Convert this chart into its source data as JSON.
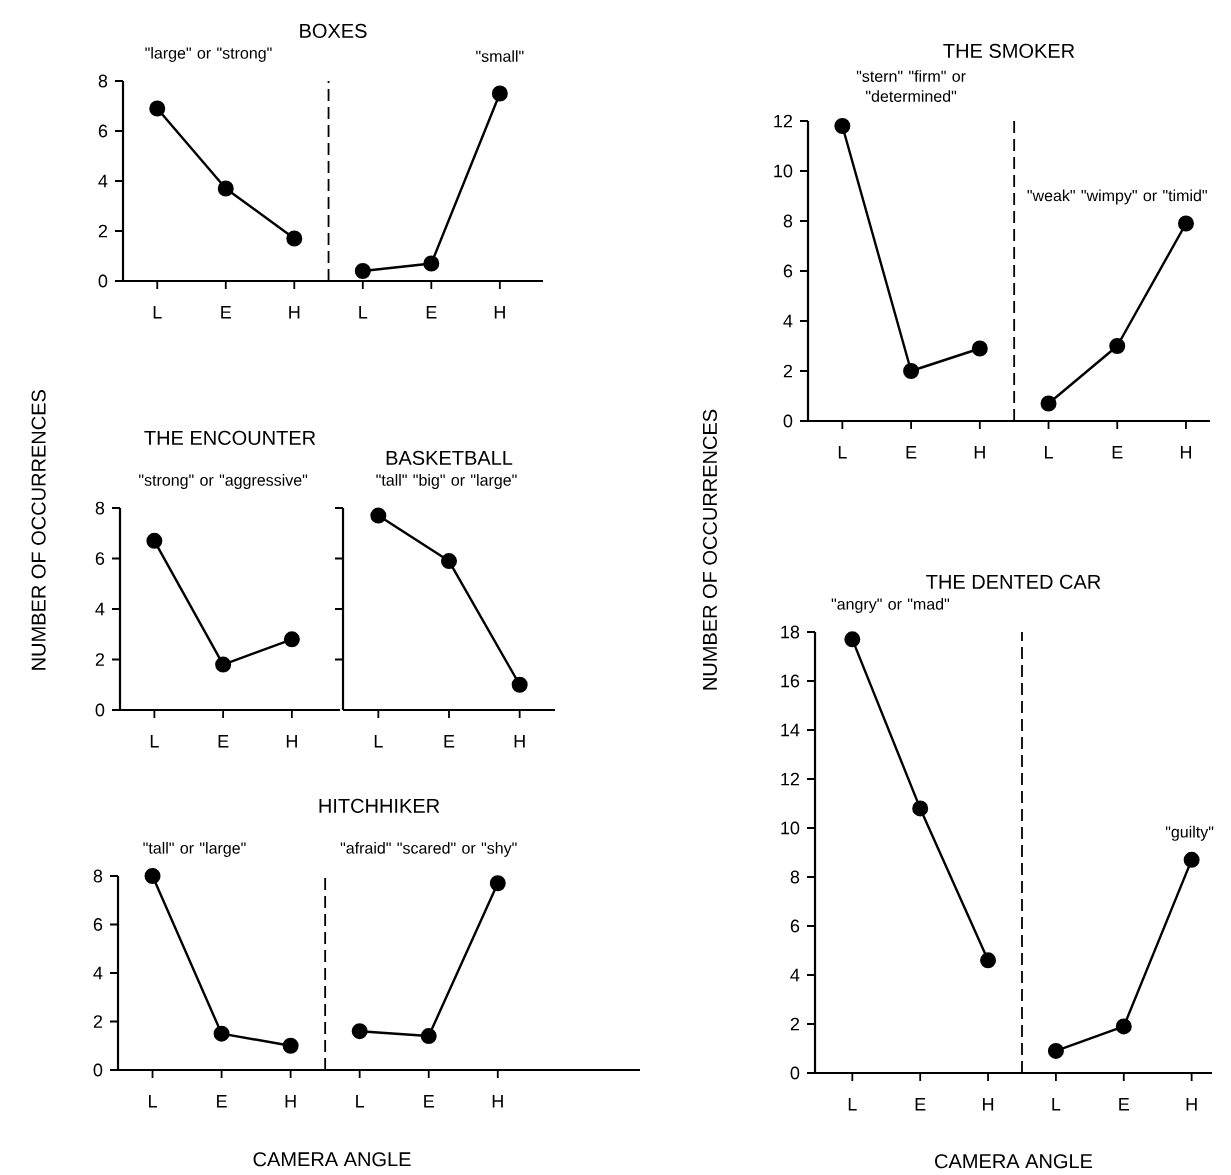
{
  "chart_data": [
    {
      "type": "line",
      "title": "BOXES",
      "categories": [
        "L",
        "E",
        "H",
        "L",
        "E",
        "H"
      ],
      "series": [
        {
          "name": "\"large\" or \"strong\"",
          "color": "#000000",
          "values": [
            6.9,
            3.7,
            1.7,
            null,
            null,
            null
          ]
        },
        {
          "name": "\"small\"",
          "color": "#000000",
          "values": [
            null,
            null,
            null,
            0.4,
            0.7,
            7.5
          ]
        }
      ],
      "ylim": [
        0,
        8
      ],
      "yticks": [
        0,
        2,
        4,
        6,
        8
      ],
      "marker": "circle",
      "line_style": "solid"
    },
    {
      "type": "line",
      "title": "THE ENCOUNTER",
      "ylabel": "NUMBER OF OCCURRENCES",
      "categories": [
        "L",
        "E",
        "H"
      ],
      "series": [
        {
          "name": "\"strong\" or \"aggressive\"",
          "color": "#000000",
          "values": [
            6.7,
            1.8,
            2.8
          ]
        }
      ],
      "ylim": [
        0,
        8
      ],
      "yticks": [
        0,
        2,
        4,
        6,
        8
      ],
      "marker": "circle",
      "line_style": "solid"
    },
    {
      "type": "line",
      "title": "BASKETBALL",
      "categories": [
        "L",
        "E",
        "H"
      ],
      "series": [
        {
          "name": "\"tall\" \"big\" or \"large\"",
          "color": "#000000",
          "values": [
            7.7,
            5.9,
            1.0
          ]
        }
      ],
      "ylim": [
        0,
        8
      ],
      "yticks": [
        {
          "value": 2,
          "label": null
        },
        {
          "value": 4,
          "label": null
        },
        {
          "value": 6,
          "label": null
        },
        {
          "value": 8,
          "label": null
        }
      ],
      "tick_labels": "x",
      "marker": "circle",
      "line_style": "solid"
    },
    {
      "type": "line",
      "title": "HITCHHIKER",
      "xlabel": "CAMERA ANGLE",
      "categories": [
        "L",
        "E",
        "H",
        "L",
        "E",
        "H"
      ],
      "series": [
        {
          "name": "\"tall\" or \"large\"",
          "color": "#000000",
          "values": [
            8.0,
            1.5,
            1.0,
            null,
            null,
            null
          ]
        },
        {
          "name": "\"afraid\" \"scared\" or \"shy\"",
          "color": "#000000",
          "values": [
            null,
            null,
            null,
            1.6,
            1.4,
            7.7
          ]
        }
      ],
      "ylim": [
        0,
        8
      ],
      "yticks": [
        0,
        2,
        4,
        6,
        8
      ],
      "marker": "circle",
      "line_style": "solid"
    },
    {
      "type": "line",
      "title": "THE SMOKER",
      "ylabel": "NUMBER OF OCCURRENCES",
      "categories": [
        "L",
        "E",
        "H",
        "L",
        "E",
        "H"
      ],
      "series": [
        {
          "name": "\"stern\" \"firm\" or \"determined\"",
          "color": "#000000",
          "values": [
            11.8,
            2.0,
            2.9,
            null,
            null,
            null
          ]
        },
        {
          "name": "\"weak\" \"wimpy\" or \"timid\"",
          "color": "#000000",
          "values": [
            null,
            null,
            null,
            0.7,
            3.0,
            7.9
          ]
        }
      ],
      "ylim": [
        0,
        12
      ],
      "yticks": [
        0,
        2,
        4,
        6,
        8,
        10,
        12
      ],
      "marker": "circle",
      "line_style": "solid"
    },
    {
      "type": "line",
      "title": "THE DENTED CAR",
      "xlabel": "CAMERA ANGLE",
      "categories": [
        "L",
        "E",
        "H",
        "L",
        "E",
        "H"
      ],
      "series": [
        {
          "name": "\"angry\" or \"mad\"",
          "color": "#000000",
          "values": [
            17.7,
            10.8,
            4.6,
            null,
            null,
            null
          ]
        },
        {
          "name": "\"guilty\"",
          "color": "#000000",
          "values": [
            null,
            null,
            null,
            0.9,
            1.9,
            8.7
          ]
        }
      ],
      "ylim": [
        0,
        18
      ],
      "yticks": [
        0,
        2,
        4,
        6,
        8,
        10,
        12,
        14,
        16,
        18
      ],
      "marker": "circle",
      "line_style": "solid"
    }
  ]
}
